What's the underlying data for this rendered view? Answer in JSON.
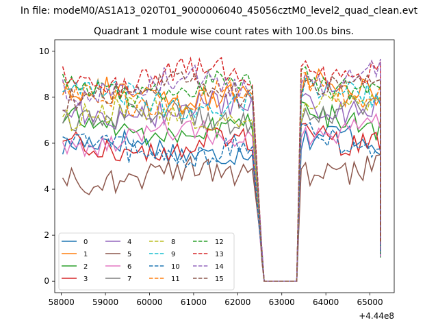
{
  "chart_data": {
    "type": "line",
    "suptitle": "In file: modeM0/AS1A13_020T01_9000006040_45056cztM0_level2_quad_clean.evt",
    "title": "Quadrant 1 module wise count rates with 100.0s bins.",
    "xlabel": "",
    "ylabel": "",
    "x_offset_label": "+4.44e8",
    "xlim": [
      57850,
      65550
    ],
    "ylim": [
      -0.5,
      10.5
    ],
    "xticks": [
      58000,
      59000,
      60000,
      61000,
      62000,
      63000,
      64000,
      65000
    ],
    "yticks": [
      0,
      2,
      4,
      6,
      8,
      10
    ],
    "legend_position": "lower-left",
    "grid": false,
    "gti": [
      [
        58030,
        62390
      ],
      [
        63440,
        65240
      ]
    ],
    "series": [
      {
        "name": "0",
        "color": "#1f77b4",
        "dash": "solid",
        "level": 5.8,
        "amp": 0.35,
        "phase": 0.0
      },
      {
        "name": "1",
        "color": "#ff7f0e",
        "dash": "solid",
        "level": 8.1,
        "amp": 0.35,
        "phase": 0.7
      },
      {
        "name": "2",
        "color": "#2ca02c",
        "dash": "solid",
        "level": 6.7,
        "amp": 0.35,
        "phase": 1.4
      },
      {
        "name": "3",
        "color": "#d62728",
        "dash": "solid",
        "level": 5.9,
        "amp": 0.35,
        "phase": 2.1
      },
      {
        "name": "4",
        "color": "#9467bd",
        "dash": "solid",
        "level": 7.4,
        "amp": 0.35,
        "phase": 2.8
      },
      {
        "name": "5",
        "color": "#8c564b",
        "dash": "solid",
        "level": 4.6,
        "amp": 0.3,
        "phase": 3.5
      },
      {
        "name": "6",
        "color": "#e377c2",
        "dash": "solid",
        "level": 6.3,
        "amp": 0.35,
        "phase": 4.2
      },
      {
        "name": "7",
        "color": "#7f7f7f",
        "dash": "solid",
        "level": 7.1,
        "amp": 0.35,
        "phase": 4.9
      },
      {
        "name": "8",
        "color": "#bcbd22",
        "dash": "dashed",
        "level": 7.2,
        "amp": 0.35,
        "phase": 5.6
      },
      {
        "name": "9",
        "color": "#17becf",
        "dash": "dashed",
        "level": 7.9,
        "amp": 0.35,
        "phase": 0.35
      },
      {
        "name": "10",
        "color": "#1f77b4",
        "dash": "dashed",
        "level": 5.7,
        "amp": 0.35,
        "phase": 1.05
      },
      {
        "name": "11",
        "color": "#ff7f0e",
        "dash": "dashed",
        "level": 8.0,
        "amp": 0.35,
        "phase": 1.75
      },
      {
        "name": "12",
        "color": "#2ca02c",
        "dash": "dashed",
        "level": 8.4,
        "amp": 0.35,
        "phase": 2.45
      },
      {
        "name": "13",
        "color": "#d62728",
        "dash": "dashed",
        "level": 8.9,
        "amp": 0.4,
        "phase": 3.15
      },
      {
        "name": "14",
        "color": "#9467bd",
        "dash": "dashed",
        "level": 8.5,
        "amp": 0.35,
        "phase": 3.85
      },
      {
        "name": "15",
        "color": "#8c564b",
        "dash": "dashed",
        "level": 8.3,
        "amp": 0.35,
        "phase": 4.55
      }
    ]
  }
}
